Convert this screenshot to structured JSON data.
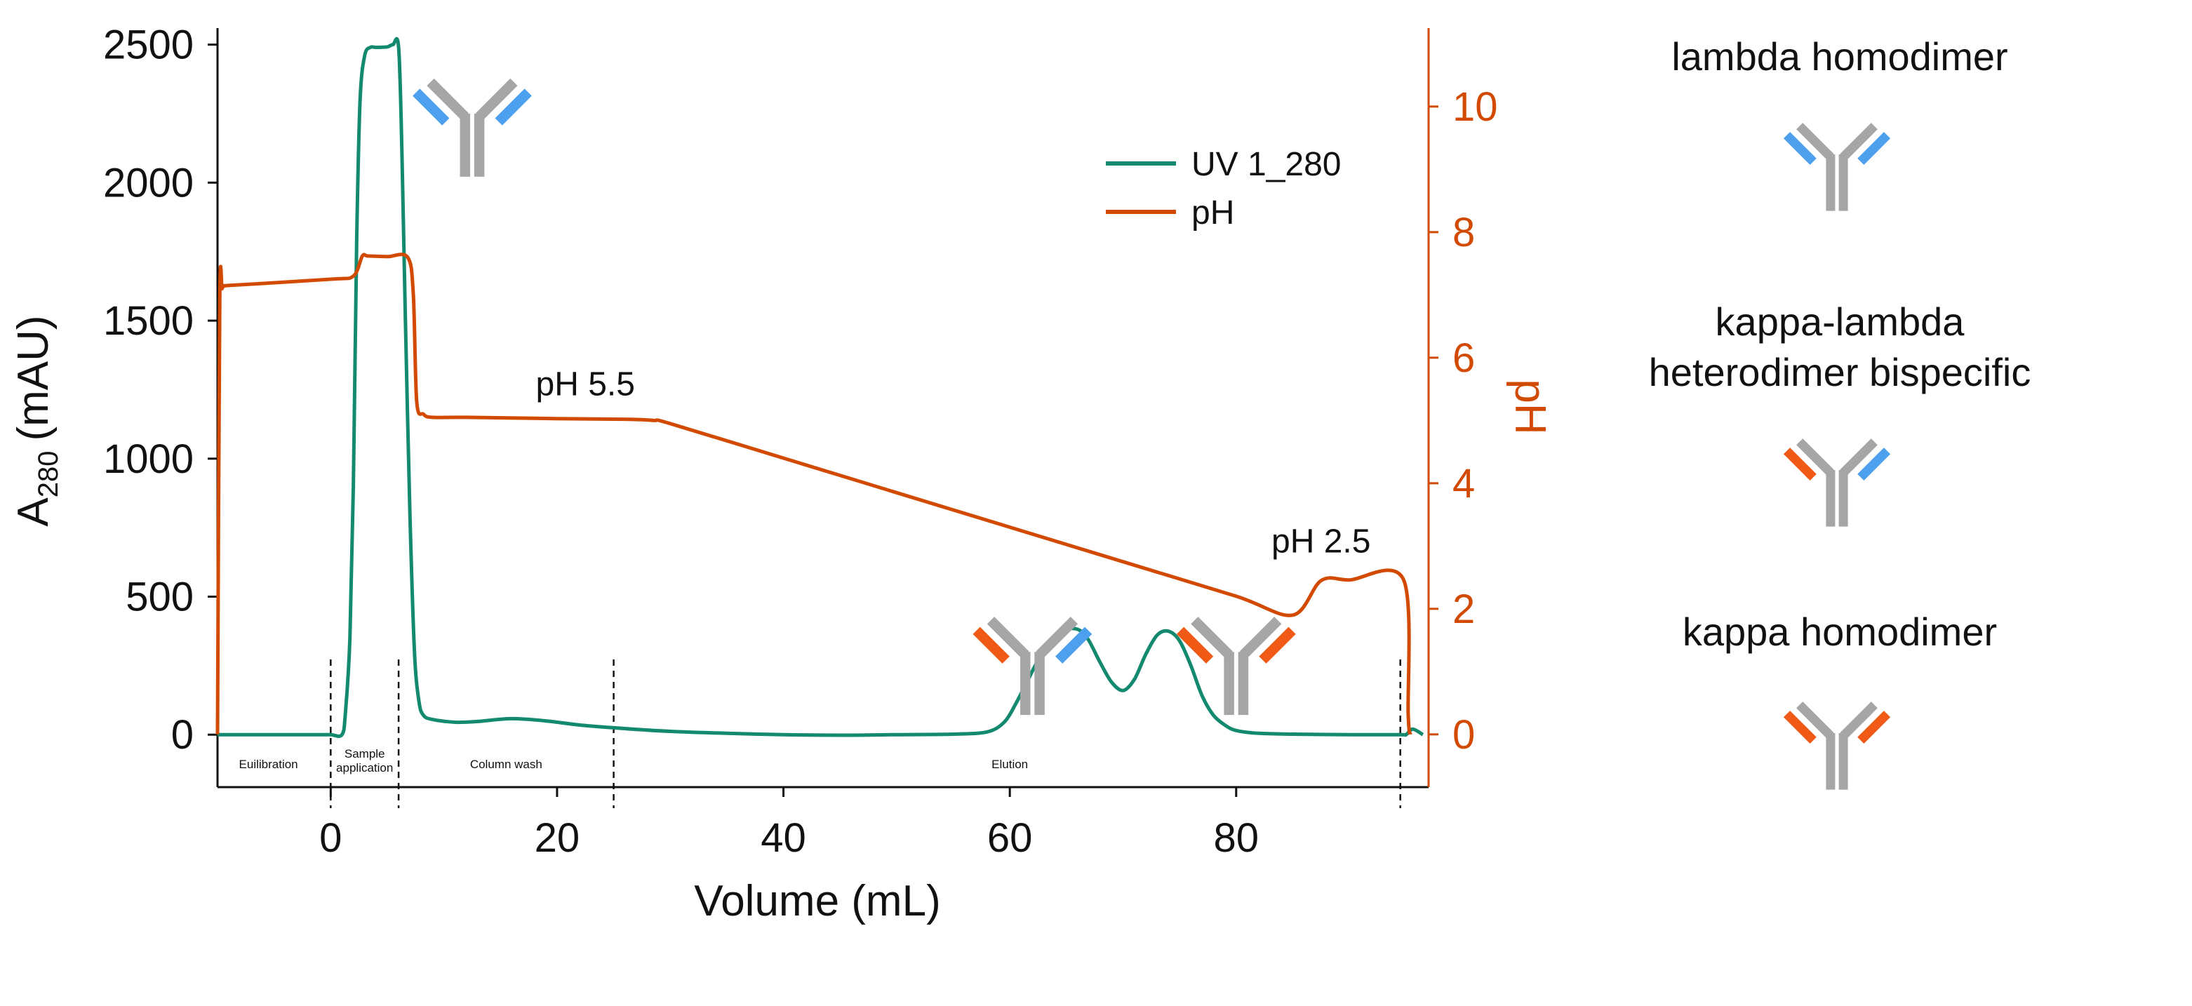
{
  "chart_data": {
    "type": "line",
    "xlabel": "Volume (mL)",
    "ylabel_left": "A",
    "ylabel_left_sub": "280",
    "ylabel_left_unit": "(mAU)",
    "ylabel_right": "pH",
    "xlim": [
      -10,
      97
    ],
    "ylim_left": [
      -190,
      2560
    ],
    "ylim_right": [
      -0.84,
      11.25
    ],
    "xticks": [
      "0",
      "20",
      "40",
      "60",
      "80"
    ],
    "xtick_values": [
      0,
      20,
      40,
      60,
      80
    ],
    "yticks_left": [
      "0",
      "500",
      "1000",
      "1500",
      "2000",
      "2500"
    ],
    "ytick_values_left": [
      0,
      500,
      1000,
      1500,
      2000,
      2500
    ],
    "yticks_right": [
      "0",
      "2",
      "4",
      "6",
      "8",
      "10"
    ],
    "ytick_values_right": [
      0,
      2,
      4,
      6,
      8,
      10
    ],
    "grid": false,
    "legend_position": "top-right",
    "series": [
      {
        "name": "UV 1_280",
        "axis": "left",
        "color": "#13896f",
        "x": [
          -10,
          -1,
          0,
          1,
          1.3,
          1.7,
          2,
          2.3,
          2.6,
          3,
          3.5,
          4,
          5,
          5.5,
          6,
          6.3,
          6.6,
          7,
          7.4,
          7.8,
          8.2,
          9,
          11,
          13,
          16,
          19,
          22,
          25,
          30,
          35,
          40,
          45,
          50,
          55,
          58,
          59.5,
          60.5,
          61.5,
          62.5,
          63.5,
          64.5,
          65.5,
          66.3,
          67,
          68,
          69,
          70,
          71,
          72,
          73,
          74,
          75,
          76,
          77,
          78,
          79,
          80,
          82,
          85,
          90,
          94.5,
          95,
          95.6,
          96.5
        ],
        "y": [
          0,
          0,
          0,
          0,
          80,
          350,
          900,
          1800,
          2300,
          2460,
          2490,
          2490,
          2492,
          2500,
          2490,
          2100,
          1500,
          800,
          300,
          120,
          70,
          55,
          45,
          48,
          58,
          50,
          35,
          25,
          12,
          5,
          0,
          -2,
          0,
          2,
          10,
          45,
          110,
          190,
          270,
          335,
          375,
          385,
          375,
          340,
          260,
          190,
          160,
          200,
          290,
          360,
          375,
          340,
          250,
          140,
          70,
          35,
          15,
          5,
          2,
          0,
          0,
          0,
          20,
          0
        ]
      },
      {
        "name": "pH",
        "axis": "right",
        "color": "#d24a00",
        "x": [
          -10,
          -9.8,
          -9.6,
          -9.4,
          -9,
          0,
          2,
          2.8,
          3.3,
          5,
          6.8,
          7.3,
          7.6,
          8.2,
          9,
          12,
          20,
          26,
          28.5,
          30,
          40,
          50,
          60,
          70,
          80,
          85,
          87.5,
          90,
          94.8,
          95.2,
          95.4
        ],
        "y": [
          0,
          6.9,
          7.1,
          7.14,
          7.15,
          7.25,
          7.3,
          7.62,
          7.62,
          7.61,
          7.6,
          7.0,
          5.3,
          5.1,
          5.05,
          5.05,
          5.03,
          5.02,
          5.0,
          4.95,
          4.4,
          3.85,
          3.3,
          2.75,
          2.2,
          1.9,
          2.45,
          2.46,
          2.46,
          0.3,
          0
        ]
      }
    ],
    "phase_boundaries": [
      0,
      6,
      25,
      94.5
    ],
    "phases": [
      {
        "lines": [
          "Euilibration"
        ],
        "x": -5.5
      },
      {
        "lines": [
          "Sample",
          "application"
        ],
        "x": 3
      },
      {
        "lines": [
          "Column wash"
        ],
        "x": 15.5
      },
      {
        "lines": [
          "Elution"
        ],
        "x": 60
      }
    ],
    "annotations": [
      {
        "text": "pH 5.5",
        "x": 22.5,
        "y_right": 5.4
      },
      {
        "text": "pH 2.5",
        "x": 87.5,
        "y_right": 2.9
      }
    ],
    "antibody_markers": [
      {
        "type": "lambda",
        "x": 12.5,
        "y": 2250
      },
      {
        "type": "kappa-lambda",
        "x": 62,
        "y": 300
      },
      {
        "type": "kappa",
        "x": 80,
        "y": 300
      }
    ]
  },
  "legend": {
    "uv_label": "UV 1_280",
    "ph_label": "pH"
  },
  "side_panel": {
    "lambda_title": "lambda homodimer",
    "bispecific_title_line1": "kappa-lambda",
    "bispecific_title_line2": "heterodimer bispecific",
    "kappa_title": "kappa homodimer"
  },
  "colors": {
    "uv": "#13896f",
    "ph": "#d24a00",
    "antibody_body": "#a6a6a6",
    "kappa_chain": "#f05a16",
    "lambda_chain": "#4da0ee"
  },
  "icons": {
    "antibody": "y-shaped-antibody-icon"
  }
}
